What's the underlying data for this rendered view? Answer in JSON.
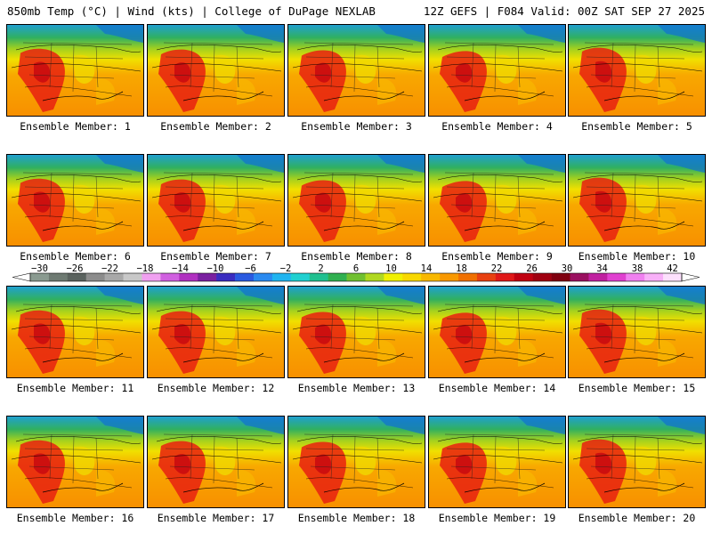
{
  "header": {
    "left": "850mb Temp (°C) | Wind (kts) | College of DuPage NEXLAB",
    "right": "12Z GEFS | F084 Valid: 00Z SAT SEP 27 2025"
  },
  "members": [
    {
      "label": "Ensemble Member: 1"
    },
    {
      "label": "Ensemble Member: 2"
    },
    {
      "label": "Ensemble Member: 3"
    },
    {
      "label": "Ensemble Member: 4"
    },
    {
      "label": "Ensemble Member: 5"
    },
    {
      "label": "Ensemble Member: 6"
    },
    {
      "label": "Ensemble Member: 7"
    },
    {
      "label": "Ensemble Member: 8"
    },
    {
      "label": "Ensemble Member: 9"
    },
    {
      "label": "Ensemble Member: 10"
    },
    {
      "label": "Ensemble Member: 11"
    },
    {
      "label": "Ensemble Member: 12"
    },
    {
      "label": "Ensemble Member: 13"
    },
    {
      "label": "Ensemble Member: 14"
    },
    {
      "label": "Ensemble Member: 15"
    },
    {
      "label": "Ensemble Member: 16"
    },
    {
      "label": "Ensemble Member: 17"
    },
    {
      "label": "Ensemble Member: 18"
    },
    {
      "label": "Ensemble Member: 19"
    },
    {
      "label": "Ensemble Member: 20"
    }
  ],
  "colorbar": {
    "ticks": [
      "-30",
      "-26",
      "-22",
      "-18",
      "-14",
      "-10",
      "-6",
      "-2",
      "2",
      "6",
      "10",
      "14",
      "18",
      "22",
      "26",
      "30",
      "34",
      "38",
      "42"
    ],
    "colors": [
      "#8a9a90",
      "#6e7a72",
      "#5a625e",
      "#8c8c8c",
      "#a8a8a8",
      "#c8c8c8",
      "#f0a0f0",
      "#d060e0",
      "#b030c0",
      "#7a20a0",
      "#3a2cc0",
      "#2a5ae0",
      "#2a8af0",
      "#20b4f0",
      "#20d0d0",
      "#20c090",
      "#30b050",
      "#70c030",
      "#b0d820",
      "#f0f000",
      "#f8d800",
      "#f8b800",
      "#f89800",
      "#f07000",
      "#e84010",
      "#e01818",
      "#c00010",
      "#a00010",
      "#800010",
      "#9a1060",
      "#c020a0",
      "#e040d0",
      "#f080f0",
      "#f8b0f8",
      "#fce0fc"
    ]
  }
}
